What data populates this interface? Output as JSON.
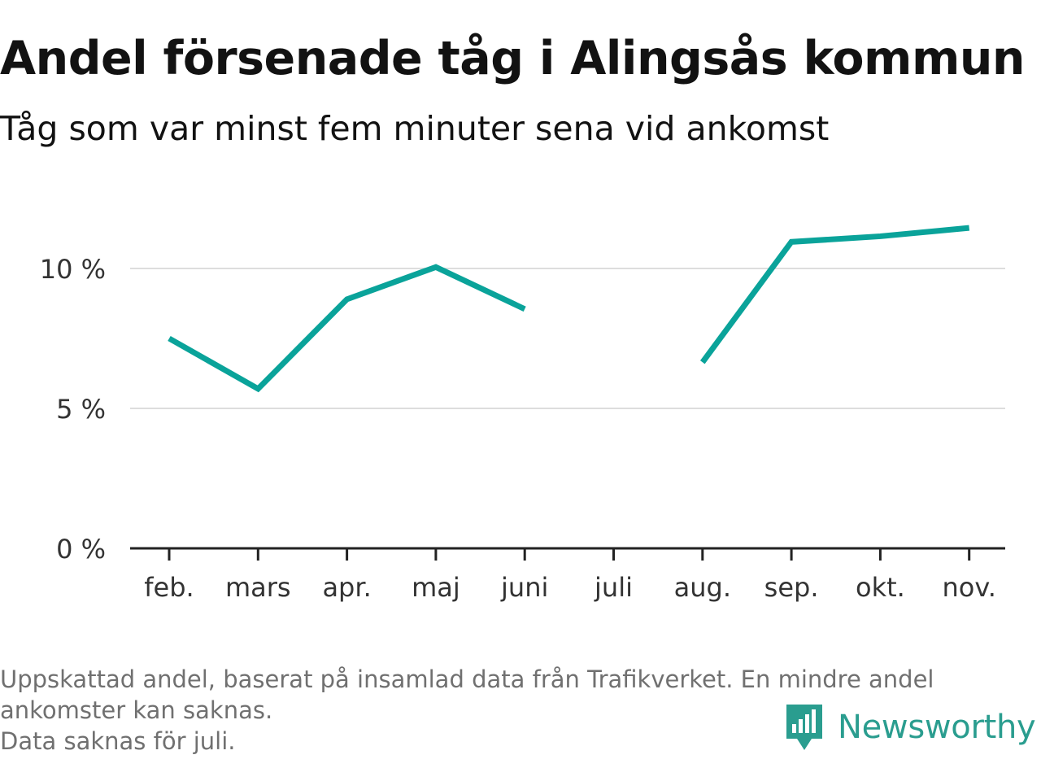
{
  "title": "Andel försenade tåg i Alingsås kommun",
  "subtitle": "Tåg som var minst fem minuter sena vid ankomst",
  "chart_data": {
    "type": "line",
    "title": "Andel försenade tåg i Alingsås kommun",
    "subtitle": "Tåg som var minst fem minuter sena vid ankomst",
    "categories": [
      "feb.",
      "mars",
      "apr.",
      "maj",
      "juni",
      "juli",
      "aug.",
      "sep.",
      "okt.",
      "nov."
    ],
    "series": [
      {
        "values": [
          7.5,
          5.7,
          8.9,
          10.05,
          8.55,
          null,
          6.65,
          10.95,
          11.15,
          11.45
        ],
        "color": "#0aa39a"
      }
    ],
    "yticks": [
      {
        "value": 0,
        "label": "0 %"
      },
      {
        "value": 5,
        "label": "5 %"
      },
      {
        "value": 10,
        "label": "10 %"
      }
    ],
    "ylim": [
      0,
      12
    ],
    "grid": true,
    "legend": "none",
    "xlabel": "",
    "ylabel": ""
  },
  "footnote": {
    "line1": "Uppskattad andel, baserat på insamlad data från Trafikverket. En mindre andel",
    "line2": "ankomster kan saknas.",
    "line3": "Data saknas för juli."
  },
  "brand": {
    "name": "Newsworthy",
    "logo_icon": "bar-chart-speech-bubble-icon",
    "color": "#2a9d8f"
  }
}
